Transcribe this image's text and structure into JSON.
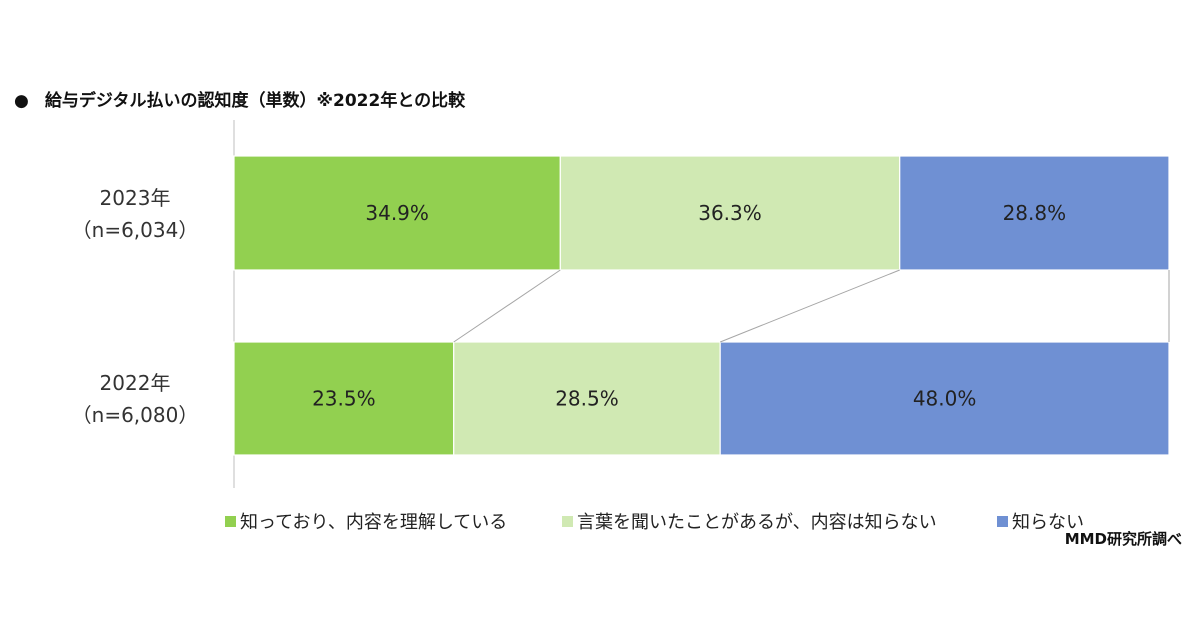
{
  "title_bullet": "●",
  "title": "給与デジタル払いの認知度（単数）※2022年との比較",
  "source": "MMD研究所調べ",
  "colors": {
    "series": [
      "#92d050",
      "#d0e9b3",
      "#6f90d3"
    ],
    "axis": "#bfbfbf",
    "connector": "#a6a6a6"
  },
  "chart_data": {
    "type": "bar",
    "orientation": "horizontal",
    "stacked": true,
    "percent_stacked": true,
    "categories": [
      {
        "year": "2023年",
        "n": "（n=6,034）"
      },
      {
        "year": "2022年",
        "n": "（n=6,080）"
      }
    ],
    "series": [
      {
        "name": "知っており、内容を理解している",
        "values": [
          34.9,
          23.5
        ],
        "labels": [
          "34.9%",
          "23.5%"
        ]
      },
      {
        "name": "言葉を聞いたことがあるが、内容は知らない",
        "values": [
          36.3,
          28.5
        ],
        "labels": [
          "36.3%",
          "28.5%"
        ]
      },
      {
        "name": "知らない",
        "values": [
          28.8,
          48.0
        ],
        "labels": [
          "28.8%",
          "48.0%"
        ]
      }
    ],
    "xlim": [
      0,
      100
    ],
    "legend_position": "bottom",
    "series_lines": true,
    "grid": false
  }
}
